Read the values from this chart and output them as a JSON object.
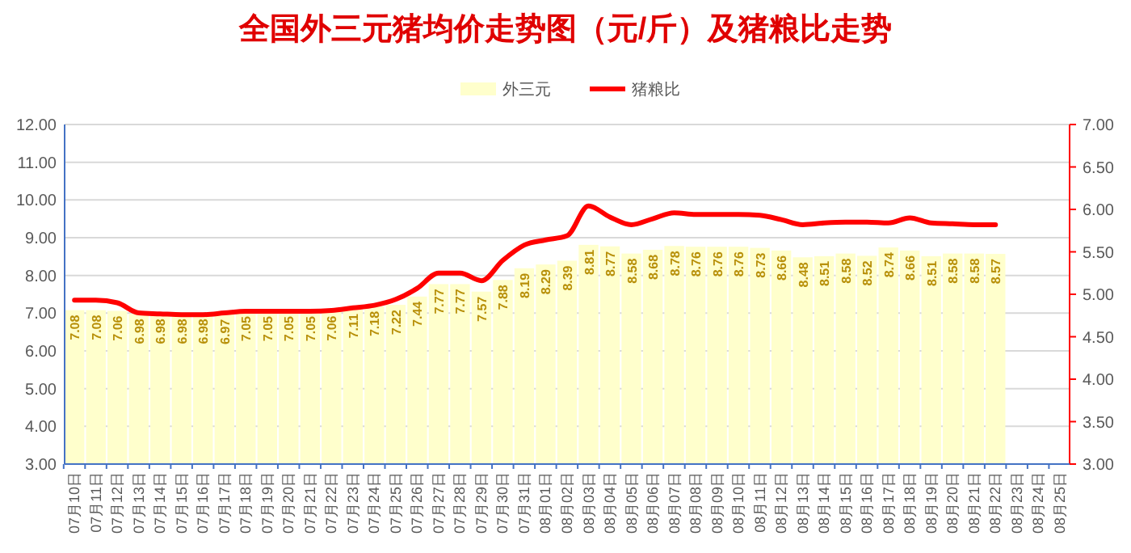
{
  "chart_data": {
    "type": "bar",
    "title": "全国外三元猪均价走势图（元/斤）及猪粮比走势",
    "categories": [
      "07月10日",
      "07月11日",
      "07月12日",
      "07月13日",
      "07月14日",
      "07月15日",
      "07月16日",
      "07月17日",
      "07月18日",
      "07月19日",
      "07月20日",
      "07月21日",
      "07月22日",
      "07月23日",
      "07月24日",
      "07月25日",
      "07月26日",
      "07月27日",
      "07月28日",
      "07月29日",
      "07月30日",
      "07月31日",
      "08月01日",
      "08月02日",
      "08月03日",
      "08月04日",
      "08月05日",
      "08月06日",
      "08月07日",
      "08月08日",
      "08月09日",
      "08月10日",
      "08月11日",
      "08月12日",
      "08月13日",
      "08月14日",
      "08月15日",
      "08月16日",
      "08月17日",
      "08月18日",
      "08月19日",
      "08月20日",
      "08月21日",
      "08月22日",
      "08月23日",
      "08月24日",
      "08月25日"
    ],
    "series": [
      {
        "name": "外三元",
        "color": "#ffffcc",
        "value_labels": [
          "7.08",
          "7.08",
          "7.06",
          "6.98",
          "6.98",
          "6.98",
          "6.98",
          "6.97",
          "7.05",
          "7.05",
          "7.05",
          "7.05",
          "7.06",
          "7.11",
          "7.18",
          "7.22",
          "7.44",
          "7.77",
          "7.77",
          "7.57",
          "7.88",
          "8.19",
          "8.29",
          "8.39",
          "8.81",
          "8.77",
          "8.58",
          "8.68",
          "8.78",
          "8.76",
          "8.76",
          "8.76",
          "8.73",
          "8.66",
          "8.48",
          "8.51",
          "8.58",
          "8.52",
          "8.74",
          "8.66",
          "8.51",
          "8.58",
          "8.58",
          "8.57",
          null,
          null,
          null
        ],
        "values": [
          7.08,
          7.08,
          7.06,
          6.98,
          6.98,
          6.98,
          6.98,
          6.97,
          7.05,
          7.05,
          7.05,
          7.05,
          7.06,
          7.11,
          7.18,
          7.22,
          7.44,
          7.77,
          7.77,
          7.57,
          7.88,
          8.19,
          8.29,
          8.39,
          8.81,
          8.77,
          8.58,
          8.68,
          8.78,
          8.76,
          8.76,
          8.76,
          8.73,
          8.66,
          8.48,
          8.51,
          8.58,
          8.52,
          8.74,
          8.66,
          8.51,
          8.58,
          8.58,
          8.57,
          null,
          null,
          null
        ]
      },
      {
        "name": "猪粮比",
        "type": "line",
        "axis": "y2",
        "color": "#ff0000",
        "values": [
          4.93,
          4.93,
          4.9,
          4.78,
          4.77,
          4.76,
          4.76,
          4.78,
          4.8,
          4.8,
          4.8,
          4.8,
          4.81,
          4.84,
          4.87,
          4.94,
          5.07,
          5.25,
          5.25,
          5.16,
          5.4,
          5.58,
          5.64,
          5.69,
          6.04,
          5.91,
          5.82,
          5.89,
          5.96,
          5.94,
          5.94,
          5.94,
          5.93,
          5.88,
          5.82,
          5.84,
          5.85,
          5.85,
          5.84,
          5.9,
          5.84,
          5.83,
          5.82,
          5.82,
          null,
          null,
          null
        ]
      }
    ],
    "ylim": [
      3,
      12
    ],
    "yticks": [
      {
        "value": 3,
        "label": "3.00"
      },
      {
        "value": 4,
        "label": "4.00"
      },
      {
        "value": 5,
        "label": "5.00"
      },
      {
        "value": 6,
        "label": "6.00"
      },
      {
        "value": 7,
        "label": "7.00"
      },
      {
        "value": 8,
        "label": "8.00"
      },
      {
        "value": 9,
        "label": "9.00"
      },
      {
        "value": 10,
        "label": "10.00"
      },
      {
        "value": 11,
        "label": "11.00"
      },
      {
        "value": 12,
        "label": "12.00"
      }
    ],
    "y2lim": [
      3,
      7
    ],
    "y2ticks": [
      {
        "value": 3,
        "label": "3.00"
      },
      {
        "value": 3.5,
        "label": "3.50"
      },
      {
        "value": 4,
        "label": "4.00"
      },
      {
        "value": 4.5,
        "label": "4.50"
      },
      {
        "value": 5,
        "label": "5.00"
      },
      {
        "value": 5.5,
        "label": "5.50"
      },
      {
        "value": 6,
        "label": "6.00"
      },
      {
        "value": 6.5,
        "label": "6.50"
      },
      {
        "value": 7,
        "label": "7.00"
      }
    ],
    "grid": "y",
    "legend": "top",
    "marker": "none",
    "line_style": "solid"
  }
}
